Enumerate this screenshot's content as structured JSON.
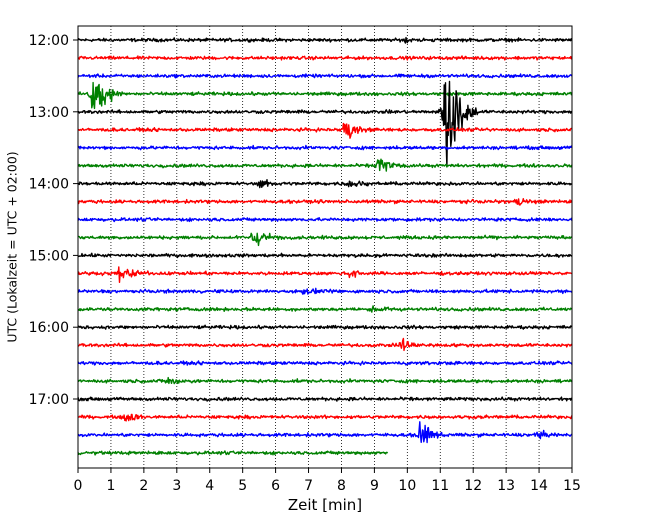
{
  "chart_data": {
    "type": "line",
    "title": "",
    "xlabel": "Zeit  [min]",
    "ylabel": "UTC (Lokalzeit = UTC + 02:00)",
    "xlim": [
      0,
      15
    ],
    "xticks": [
      0,
      1,
      2,
      3,
      4,
      5,
      6,
      7,
      8,
      9,
      10,
      11,
      12,
      13,
      14,
      15
    ],
    "yticks": [
      "12:00",
      "13:00",
      "14:00",
      "15:00",
      "16:00",
      "17:00"
    ],
    "grid": "vertical dotted lines at each minute",
    "trace_interval_min": 15,
    "color_cycle": [
      "#000000",
      "#ff0000",
      "#0000ff",
      "#008000"
    ],
    "traces": [
      {
        "start": "12:00",
        "end_min": 15,
        "events": [
          {
            "t": 9.9,
            "amp": 3
          }
        ]
      },
      {
        "start": "12:15",
        "end_min": 15,
        "events": []
      },
      {
        "start": "12:30",
        "end_min": 15,
        "events": []
      },
      {
        "start": "12:45",
        "end_min": 15,
        "events": [
          {
            "t": 0.42,
            "amp": 27
          }
        ]
      },
      {
        "start": "13:00",
        "end_min": 15,
        "events": [
          {
            "t": 11.15,
            "amp": 62
          },
          {
            "t": 11.0,
            "amp": 12
          }
        ]
      },
      {
        "start": "13:15",
        "end_min": 15,
        "events": [
          {
            "t": 8.05,
            "amp": 11
          }
        ]
      },
      {
        "start": "13:30",
        "end_min": 15,
        "events": []
      },
      {
        "start": "13:45",
        "end_min": 15,
        "events": [
          {
            "t": 9.1,
            "amp": 9
          }
        ]
      },
      {
        "start": "14:00",
        "end_min": 15,
        "events": [
          {
            "t": 5.5,
            "amp": 4
          },
          {
            "t": 8.2,
            "amp": 5
          }
        ]
      },
      {
        "start": "14:15",
        "end_min": 15,
        "events": [
          {
            "t": 13.3,
            "amp": 5
          }
        ]
      },
      {
        "start": "14:30",
        "end_min": 15,
        "events": []
      },
      {
        "start": "14:45",
        "end_min": 15,
        "events": [
          {
            "t": 5.3,
            "amp": 11
          }
        ]
      },
      {
        "start": "15:00",
        "end_min": 15,
        "events": []
      },
      {
        "start": "15:15",
        "end_min": 15,
        "events": [
          {
            "t": 1.25,
            "amp": 10
          },
          {
            "t": 8.25,
            "amp": 5
          }
        ]
      },
      {
        "start": "15:30",
        "end_min": 15,
        "events": [
          {
            "t": 6.8,
            "amp": 4
          }
        ]
      },
      {
        "start": "15:45",
        "end_min": 15,
        "events": [
          {
            "t": 8.9,
            "amp": 4
          }
        ]
      },
      {
        "start": "16:00",
        "end_min": 15,
        "events": []
      },
      {
        "start": "16:15",
        "end_min": 15,
        "events": [
          {
            "t": 9.8,
            "amp": 8
          }
        ]
      },
      {
        "start": "16:30",
        "end_min": 15,
        "events": []
      },
      {
        "start": "16:45",
        "end_min": 15,
        "events": [
          {
            "t": 2.7,
            "amp": 6
          }
        ]
      },
      {
        "start": "17:00",
        "end_min": 15,
        "events": []
      },
      {
        "start": "17:15",
        "end_min": 15,
        "events": [
          {
            "t": 1.4,
            "amp": 7
          }
        ]
      },
      {
        "start": "17:30",
        "end_min": 15,
        "events": [
          {
            "t": 10.35,
            "amp": 13
          },
          {
            "t": 13.9,
            "amp": 4
          }
        ]
      },
      {
        "start": "17:45",
        "end_min": 9.4,
        "events": []
      }
    ]
  }
}
